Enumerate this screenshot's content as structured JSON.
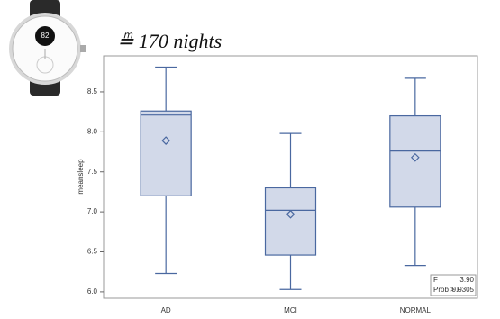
{
  "watch_display": "82",
  "chart_data": {
    "type": "box",
    "title": "≞ 170 nights",
    "y_label": "meansleep",
    "categories": [
      "AD",
      "MCI",
      "NORMAL"
    ],
    "boxes": [
      {
        "min": 6.23,
        "q1": 7.2,
        "median": 8.21,
        "q3": 8.26,
        "max": 8.81,
        "mean": 7.89
      },
      {
        "min": 6.03,
        "q1": 6.46,
        "median": 7.02,
        "q3": 7.3,
        "max": 7.98,
        "mean": 6.97
      },
      {
        "min": 6.33,
        "q1": 7.06,
        "median": 7.76,
        "q3": 8.2,
        "max": 8.67,
        "mean": 7.68
      }
    ],
    "color": "#d2d9e9",
    "edge_color": "#4a68a0",
    "ylim": [
      5.92,
      8.95
    ],
    "yticks": [
      {
        "value": 6,
        "label": "6.0"
      },
      6.5,
      {
        "value": 7,
        "label": "7.0"
      },
      7.5,
      {
        "value": 8,
        "label": "8.0"
      },
      8.5
    ],
    "stats": [
      [
        "F",
        "3.90"
      ],
      [
        "Prob > F",
        "0.0305"
      ]
    ]
  }
}
